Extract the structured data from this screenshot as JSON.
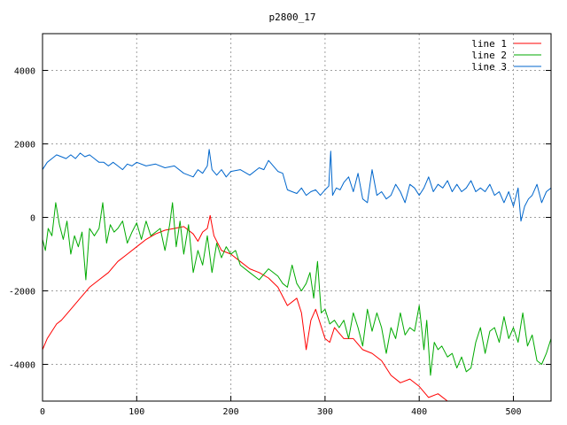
{
  "chart_data": {
    "type": "line",
    "title": "p2800_17",
    "xlabel": "",
    "ylabel": "",
    "xlim": [
      0,
      540
    ],
    "ylim": [
      -5000,
      5000
    ],
    "x_ticks": [
      0,
      100,
      200,
      300,
      400,
      500
    ],
    "y_ticks": [
      -4000,
      -2000,
      0,
      2000,
      4000
    ],
    "grid": true,
    "legend_position": "top-right",
    "series": [
      {
        "name": "line 1",
        "color": "#ff0000",
        "x": [
          0,
          5,
          10,
          15,
          20,
          30,
          40,
          50,
          60,
          70,
          80,
          90,
          100,
          110,
          120,
          130,
          140,
          150,
          160,
          165,
          170,
          175,
          178,
          182,
          190,
          200,
          210,
          220,
          230,
          240,
          250,
          260,
          270,
          275,
          280,
          285,
          290,
          300,
          305,
          310,
          320,
          330,
          340,
          350,
          360,
          370,
          380,
          390,
          400,
          410,
          420,
          430
        ],
        "y": [
          -3600,
          -3300,
          -3100,
          -2900,
          -2800,
          -2500,
          -2200,
          -1900,
          -1700,
          -1500,
          -1200,
          -1000,
          -800,
          -600,
          -450,
          -350,
          -300,
          -250,
          -450,
          -650,
          -400,
          -300,
          50,
          -500,
          -900,
          -1000,
          -1200,
          -1400,
          -1500,
          -1650,
          -1900,
          -2400,
          -2200,
          -2600,
          -3600,
          -2800,
          -2500,
          -3300,
          -3400,
          -3000,
          -3300,
          -3300,
          -3600,
          -3700,
          -3900,
          -4300,
          -4500,
          -4400,
          -4600,
          -4900,
          -4800,
          -5000
        ]
      },
      {
        "name": "line 2",
        "color": "#00aa00",
        "x": [
          0,
          3,
          6,
          10,
          14,
          18,
          22,
          26,
          30,
          34,
          38,
          42,
          46,
          50,
          55,
          60,
          64,
          68,
          72,
          76,
          80,
          85,
          90,
          95,
          100,
          105,
          110,
          115,
          120,
          125,
          130,
          135,
          138,
          142,
          146,
          150,
          155,
          160,
          165,
          170,
          175,
          180,
          185,
          190,
          195,
          200,
          205,
          210,
          220,
          230,
          240,
          250,
          255,
          260,
          265,
          270,
          275,
          280,
          284,
          288,
          292,
          296,
          300,
          305,
          310,
          315,
          320,
          325,
          330,
          335,
          340,
          345,
          350,
          355,
          360,
          365,
          370,
          375,
          380,
          385,
          390,
          395,
          400,
          405,
          408,
          412,
          416,
          420,
          424,
          430,
          435,
          440,
          445,
          450,
          455,
          460,
          465,
          470,
          475,
          480,
          485,
          490,
          495,
          500,
          505,
          510,
          515,
          520,
          525,
          530,
          535,
          540
        ],
        "y": [
          -600,
          -900,
          -300,
          -500,
          400,
          -200,
          -600,
          -100,
          -1000,
          -500,
          -800,
          -400,
          -1700,
          -300,
          -500,
          -300,
          400,
          -700,
          -200,
          -400,
          -300,
          -100,
          -700,
          -400,
          -150,
          -600,
          -100,
          -500,
          -400,
          -300,
          -900,
          -200,
          400,
          -800,
          -100,
          -1000,
          -200,
          -1500,
          -900,
          -1300,
          -500,
          -1500,
          -700,
          -1100,
          -800,
          -1000,
          -900,
          -1300,
          -1500,
          -1700,
          -1400,
          -1600,
          -1800,
          -1900,
          -1300,
          -1800,
          -2000,
          -1800,
          -1500,
          -2200,
          -1200,
          -2600,
          -2500,
          -2900,
          -2800,
          -3000,
          -2800,
          -3300,
          -2600,
          -3000,
          -3500,
          -2500,
          -3100,
          -2600,
          -3000,
          -3700,
          -3000,
          -3300,
          -2600,
          -3200,
          -3000,
          -3100,
          -2400,
          -3600,
          -2800,
          -4300,
          -3400,
          -3600,
          -3500,
          -3800,
          -3700,
          -4100,
          -3800,
          -4200,
          -4100,
          -3400,
          -3000,
          -3700,
          -3100,
          -3000,
          -3400,
          -2700,
          -3300,
          -3000,
          -3400,
          -2600,
          -3500,
          -3200,
          -3900,
          -4000,
          -3700,
          -3300
        ]
      },
      {
        "name": "line 3",
        "color": "#0066cc",
        "x": [
          0,
          5,
          10,
          15,
          20,
          25,
          30,
          35,
          40,
          45,
          50,
          55,
          60,
          65,
          70,
          75,
          80,
          85,
          90,
          95,
          100,
          110,
          120,
          130,
          140,
          150,
          160,
          165,
          170,
          175,
          177,
          180,
          185,
          190,
          195,
          200,
          210,
          220,
          230,
          235,
          240,
          250,
          255,
          260,
          265,
          270,
          275,
          280,
          285,
          290,
          295,
          300,
          304,
          306,
          308,
          312,
          316,
          320,
          325,
          330,
          335,
          340,
          345,
          350,
          355,
          360,
          365,
          370,
          375,
          380,
          385,
          390,
          395,
          400,
          405,
          410,
          415,
          420,
          425,
          430,
          435,
          440,
          445,
          450,
          455,
          460,
          465,
          470,
          475,
          480,
          485,
          490,
          495,
          500,
          505,
          508,
          512,
          516,
          520,
          525,
          530,
          535,
          540
        ],
        "y": [
          1300,
          1500,
          1600,
          1700,
          1650,
          1600,
          1700,
          1600,
          1750,
          1650,
          1700,
          1600,
          1500,
          1500,
          1400,
          1500,
          1400,
          1300,
          1450,
          1400,
          1500,
          1400,
          1450,
          1350,
          1400,
          1200,
          1100,
          1300,
          1200,
          1400,
          1850,
          1300,
          1150,
          1300,
          1100,
          1250,
          1300,
          1150,
          1350,
          1300,
          1550,
          1250,
          1200,
          750,
          700,
          650,
          800,
          600,
          700,
          750,
          600,
          750,
          850,
          1800,
          600,
          800,
          750,
          950,
          1100,
          700,
          1200,
          500,
          400,
          1300,
          600,
          700,
          500,
          600,
          900,
          700,
          400,
          900,
          800,
          600,
          800,
          1100,
          700,
          900,
          800,
          1000,
          700,
          900,
          700,
          800,
          1000,
          700,
          800,
          700,
          900,
          600,
          700,
          400,
          700,
          300,
          800,
          -100,
          300,
          500,
          600,
          900,
          400,
          700,
          800
        ]
      }
    ]
  }
}
